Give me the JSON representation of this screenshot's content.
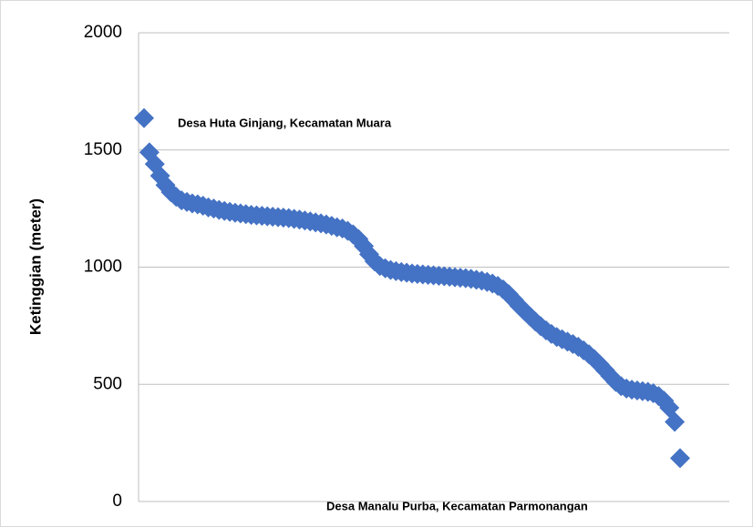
{
  "chart_data": {
    "type": "scatter",
    "ylabel": "Ketinggian (meter)",
    "annotations": [
      "Desa Huta Ginjang, Kecamatan Muara",
      "Desa Manalu Purba, Kecamatan Parmonangan"
    ],
    "color": "#4472c4",
    "ylim": [
      0,
      2000
    ],
    "yticks": [
      0,
      500,
      1000,
      1500,
      2000
    ],
    "grid": true,
    "values": [
      1636,
      1490,
      1440,
      1390,
      1350,
      1320,
      1300,
      1285,
      1278,
      1272,
      1268,
      1262,
      1255,
      1250,
      1244,
      1240,
      1236,
      1232,
      1229,
      1226,
      1223,
      1221,
      1219,
      1217,
      1215,
      1213,
      1211,
      1209,
      1206,
      1203,
      1199,
      1195,
      1191,
      1187,
      1182,
      1176,
      1170,
      1165,
      1155,
      1140,
      1120,
      1090,
      1055,
      1025,
      1005,
      995,
      988,
      983,
      979,
      976,
      973,
      971,
      969,
      967,
      965,
      963,
      961,
      959,
      957,
      955,
      953,
      950,
      946,
      942,
      937,
      930,
      920,
      905,
      885,
      860,
      835,
      812,
      790,
      768,
      748,
      730,
      715,
      702,
      692,
      682,
      672,
      660,
      645,
      628,
      608,
      585,
      560,
      535,
      510,
      492,
      482,
      477,
      474,
      471,
      468,
      462,
      450,
      430,
      400,
      340,
      185
    ]
  }
}
